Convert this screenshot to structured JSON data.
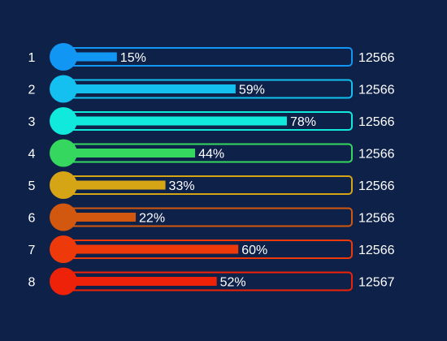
{
  "chart_data": {
    "type": "bar",
    "orientation": "horizontal",
    "categories": [
      "1",
      "2",
      "3",
      "4",
      "5",
      "6",
      "7",
      "8"
    ],
    "percent_values": [
      15,
      59,
      78,
      44,
      33,
      22,
      60,
      52
    ],
    "percent_labels": [
      "15%",
      "59%",
      "78%",
      "44%",
      "33%",
      "22%",
      "60%",
      "52%"
    ],
    "value_labels": [
      "12566",
      "12566",
      "12566",
      "12566",
      "12566",
      "12566",
      "12566",
      "12567"
    ],
    "colors": [
      "#1296f3",
      "#13c0ef",
      "#10e9dc",
      "#35d75f",
      "#d6a516",
      "#d2570f",
      "#ee3a0a",
      "#ee2208"
    ],
    "xlim": [
      0,
      100
    ],
    "grid": false,
    "legend": "none"
  }
}
